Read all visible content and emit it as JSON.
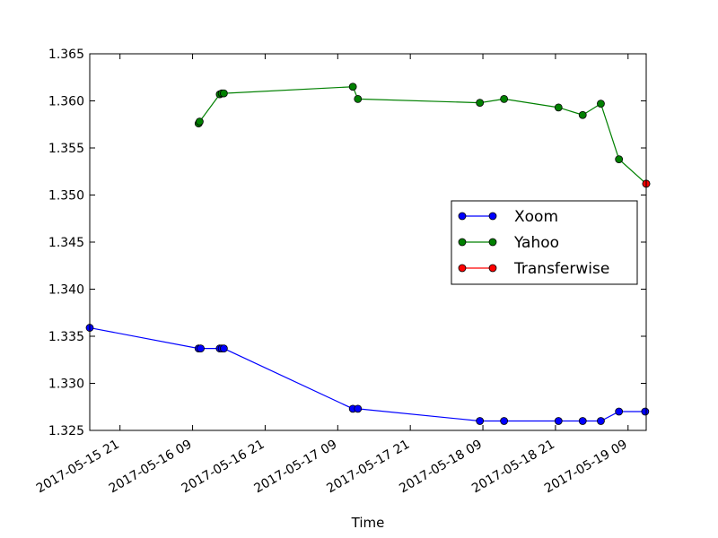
{
  "chart_data": {
    "type": "line",
    "title": "",
    "xlabel": "Time",
    "ylabel": "",
    "x_type": "datetime",
    "xlim": [
      "2017-05-15T16:00",
      "2017-05-19T12:00"
    ],
    "ylim": [
      1.325,
      1.365
    ],
    "yticks": [
      "1.325",
      "1.330",
      "1.335",
      "1.340",
      "1.345",
      "1.350",
      "1.355",
      "1.360",
      "1.365"
    ],
    "xticks": [
      {
        "t": "2017-05-15T21:00",
        "label": "2017-05-15  21"
      },
      {
        "t": "2017-05-16T09:00",
        "label": "2017-05-16  09"
      },
      {
        "t": "2017-05-16T21:00",
        "label": "2017-05-16  21"
      },
      {
        "t": "2017-05-17T09:00",
        "label": "2017-05-17  09"
      },
      {
        "t": "2017-05-17T21:00",
        "label": "2017-05-17  21"
      },
      {
        "t": "2017-05-18T09:00",
        "label": "2017-05-18  09"
      },
      {
        "t": "2017-05-18T21:00",
        "label": "2017-05-18  21"
      },
      {
        "t": "2017-05-19T09:00",
        "label": "2017-05-19  09"
      }
    ],
    "grid": false,
    "legend_position": "center-right",
    "series": [
      {
        "name": "Xoom",
        "color": "#0000ff",
        "points": [
          [
            "2017-05-15T16:00",
            1.3359
          ],
          [
            "2017-05-16T10:00",
            1.3337
          ],
          [
            "2017-05-16T10:20",
            1.3337
          ],
          [
            "2017-05-16T13:30",
            1.3337
          ],
          [
            "2017-05-16T13:50",
            1.3337
          ],
          [
            "2017-05-16T14:10",
            1.3337
          ],
          [
            "2017-05-17T11:30",
            1.3273
          ],
          [
            "2017-05-17T12:20",
            1.3273
          ],
          [
            "2017-05-18T08:30",
            1.326
          ],
          [
            "2017-05-18T12:30",
            1.326
          ],
          [
            "2017-05-18T21:30",
            1.326
          ],
          [
            "2017-05-19T01:30",
            1.326
          ],
          [
            "2017-05-19T04:30",
            1.326
          ],
          [
            "2017-05-19T07:30",
            1.327
          ],
          [
            "2017-05-19T11:50",
            1.327
          ]
        ]
      },
      {
        "name": "Yahoo",
        "color": "#008000",
        "points": [
          [
            "2017-05-16T10:00",
            1.3576
          ],
          [
            "2017-05-16T10:10",
            1.3578
          ],
          [
            "2017-05-16T13:30",
            1.3607
          ],
          [
            "2017-05-16T13:50",
            1.3608
          ],
          [
            "2017-05-16T14:10",
            1.3608
          ],
          [
            "2017-05-17T11:30",
            1.3615
          ],
          [
            "2017-05-17T12:20",
            1.3602
          ],
          [
            "2017-05-18T08:30",
            1.3598
          ],
          [
            "2017-05-18T12:30",
            1.3602
          ],
          [
            "2017-05-18T21:30",
            1.3593
          ],
          [
            "2017-05-19T01:30",
            1.3585
          ],
          [
            "2017-05-19T04:30",
            1.3597
          ],
          [
            "2017-05-19T07:30",
            1.3538
          ],
          [
            "2017-05-19T12:00",
            1.3512
          ]
        ]
      },
      {
        "name": "Transferwise",
        "color": "#ff0000",
        "points": [
          [
            "2017-05-19T12:00",
            1.3512
          ]
        ]
      }
    ]
  }
}
